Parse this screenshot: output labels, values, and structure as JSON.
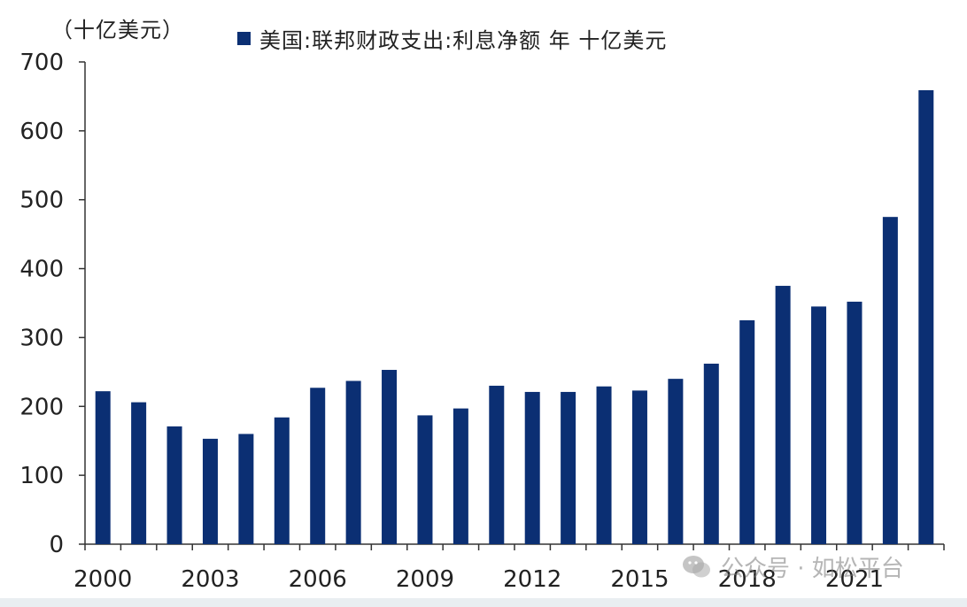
{
  "chart_data": {
    "type": "bar",
    "unit_label": "（十亿美元）",
    "series": [
      {
        "name": "美国:联邦财政支出:利息净额 年 十亿美元",
        "color": "#0b2f73",
        "values": [
          222,
          206,
          171,
          153,
          160,
          184,
          227,
          237,
          253,
          187,
          197,
          230,
          221,
          221,
          229,
          223,
          240,
          262,
          325,
          375,
          345,
          352,
          475,
          659
        ]
      }
    ],
    "categories": [
      "2000",
      "2001",
      "2002",
      "2003",
      "2004",
      "2005",
      "2006",
      "2007",
      "2008",
      "2009",
      "2010",
      "2011",
      "2012",
      "2013",
      "2014",
      "2015",
      "2016",
      "2017",
      "2018",
      "2019",
      "2020",
      "2021",
      "2022",
      "2023"
    ],
    "x_tick_labels": [
      "2000",
      "2003",
      "2006",
      "2009",
      "2012",
      "2015",
      "2018",
      "2021"
    ],
    "y_tick_labels": [
      "0",
      "100",
      "200",
      "300",
      "400",
      "500",
      "600",
      "700"
    ],
    "ylim": [
      0,
      700
    ],
    "grid": false,
    "legend_position": "top"
  },
  "watermark": {
    "text": "公众号 · 如松平台",
    "icon": "wechat-icon"
  }
}
